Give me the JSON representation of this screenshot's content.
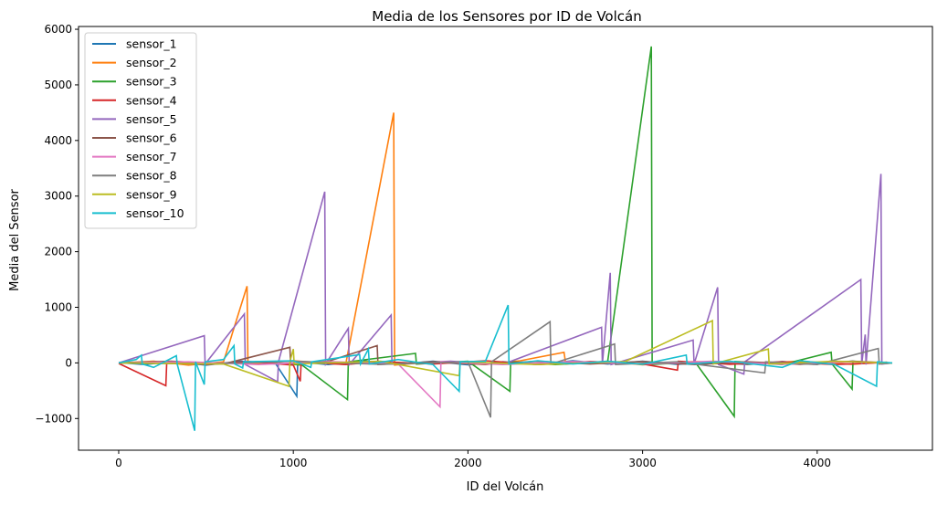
{
  "chart_data": {
    "type": "line",
    "title": "Media de los Sensores por ID de Volcán",
    "xlabel": "ID del Volcán",
    "ylabel": "Media del Sensor",
    "xlim": [
      -230,
      4660
    ],
    "ylim": [
      -1570,
      6050
    ],
    "xticks": [
      0,
      1000,
      2000,
      3000,
      4000
    ],
    "xtick_labels": [
      "0",
      "1000",
      "2000",
      "3000",
      "4000"
    ],
    "yticks": [
      -1000,
      0,
      1000,
      2000,
      3000,
      4000,
      5000,
      6000
    ],
    "ytick_labels": [
      "−1000",
      "0",
      "1000",
      "2000",
      "3000",
      "4000",
      "5000",
      "6000"
    ],
    "grid": false,
    "legend_position": "upper-left",
    "series": [
      {
        "name": "sensor_1",
        "color": "#1f77b4",
        "values": [
          [
            0,
            5
          ],
          [
            150,
            -30
          ],
          [
            300,
            25
          ],
          [
            500,
            -40
          ],
          [
            700,
            30
          ],
          [
            900,
            -20
          ],
          [
            1020,
            -600
          ],
          [
            1025,
            20
          ],
          [
            1200,
            -30
          ],
          [
            1400,
            40
          ],
          [
            1600,
            -25
          ],
          [
            1800,
            30
          ],
          [
            2000,
            -35
          ],
          [
            2200,
            20
          ],
          [
            2400,
            -30
          ],
          [
            2600,
            40
          ],
          [
            2800,
            -20
          ],
          [
            3000,
            30
          ],
          [
            3200,
            -25
          ],
          [
            3400,
            20
          ],
          [
            3600,
            -30
          ],
          [
            3800,
            25
          ],
          [
            4000,
            -20
          ],
          [
            4200,
            30
          ],
          [
            4400,
            -10
          ]
        ]
      },
      {
        "name": "sensor_2",
        "color": "#ff7f0e",
        "values": [
          [
            0,
            0
          ],
          [
            200,
            30
          ],
          [
            400,
            -40
          ],
          [
            600,
            20
          ],
          [
            735,
            1380
          ],
          [
            740,
            -20
          ],
          [
            1000,
            40
          ],
          [
            1300,
            -30
          ],
          [
            1575,
            4500
          ],
          [
            1580,
            -40
          ],
          [
            1800,
            20
          ],
          [
            2100,
            -30
          ],
          [
            2300,
            40
          ],
          [
            2550,
            190
          ],
          [
            2560,
            -20
          ],
          [
            2800,
            30
          ],
          [
            3000,
            -35
          ],
          [
            3300,
            25
          ],
          [
            3600,
            -20
          ],
          [
            3900,
            30
          ],
          [
            4200,
            -25
          ],
          [
            4400,
            15
          ]
        ]
      },
      {
        "name": "sensor_3",
        "color": "#2ca02c",
        "values": [
          [
            0,
            0
          ],
          [
            250,
            20
          ],
          [
            500,
            -30
          ],
          [
            800,
            25
          ],
          [
            1050,
            -40
          ],
          [
            1310,
            -660
          ],
          [
            1315,
            20
          ],
          [
            1700,
            170
          ],
          [
            1705,
            -20
          ],
          [
            2000,
            30
          ],
          [
            2240,
            -510
          ],
          [
            2245,
            20
          ],
          [
            2500,
            -30
          ],
          [
            2800,
            25
          ],
          [
            3050,
            5690
          ],
          [
            3055,
            -30
          ],
          [
            3300,
            20
          ],
          [
            3525,
            -960
          ],
          [
            3530,
            25
          ],
          [
            3800,
            -30
          ],
          [
            4080,
            190
          ],
          [
            4085,
            -20
          ],
          [
            4200,
            -470
          ],
          [
            4205,
            30
          ],
          [
            4400,
            -10
          ]
        ]
      },
      {
        "name": "sensor_4",
        "color": "#d62728",
        "values": [
          [
            0,
            -10
          ],
          [
            270,
            -410
          ],
          [
            275,
            20
          ],
          [
            500,
            -30
          ],
          [
            750,
            25
          ],
          [
            1000,
            -40
          ],
          [
            1040,
            -330
          ],
          [
            1045,
            20
          ],
          [
            1300,
            -30
          ],
          [
            1500,
            25
          ],
          [
            1800,
            -20
          ],
          [
            2100,
            40
          ],
          [
            2400,
            -30
          ],
          [
            2700,
            25
          ],
          [
            3000,
            -20
          ],
          [
            3200,
            -130
          ],
          [
            3205,
            30
          ],
          [
            3500,
            -25
          ],
          [
            3800,
            20
          ],
          [
            4100,
            -30
          ],
          [
            4400,
            10
          ]
        ]
      },
      {
        "name": "sensor_5",
        "color": "#9467bd",
        "values": [
          [
            0,
            0
          ],
          [
            490,
            490
          ],
          [
            495,
            -20
          ],
          [
            720,
            880
          ],
          [
            725,
            -30
          ],
          [
            910,
            -340
          ],
          [
            915,
            20
          ],
          [
            1180,
            3080
          ],
          [
            1185,
            -20
          ],
          [
            1315,
            620
          ],
          [
            1320,
            -30
          ],
          [
            1560,
            860
          ],
          [
            1565,
            -20
          ],
          [
            1900,
            30
          ],
          [
            2200,
            -25
          ],
          [
            2765,
            640
          ],
          [
            2770,
            -20
          ],
          [
            2815,
            1620
          ],
          [
            2820,
            -30
          ],
          [
            3290,
            410
          ],
          [
            3295,
            -20
          ],
          [
            3430,
            1360
          ],
          [
            3435,
            -30
          ],
          [
            3580,
            -200
          ],
          [
            3585,
            20
          ],
          [
            4250,
            1500
          ],
          [
            4255,
            -20
          ],
          [
            4275,
            510
          ],
          [
            4280,
            -30
          ],
          [
            4365,
            3400
          ],
          [
            4370,
            -20
          ],
          [
            4430,
            0
          ]
        ]
      },
      {
        "name": "sensor_6",
        "color": "#8c564b",
        "values": [
          [
            0,
            0
          ],
          [
            300,
            30
          ],
          [
            600,
            -20
          ],
          [
            980,
            280
          ],
          [
            985,
            -20
          ],
          [
            1200,
            30
          ],
          [
            1480,
            310
          ],
          [
            1485,
            -30
          ],
          [
            1800,
            20
          ],
          [
            2100,
            -25
          ],
          [
            2400,
            30
          ],
          [
            2700,
            -20
          ],
          [
            3000,
            25
          ],
          [
            3300,
            -30
          ],
          [
            3600,
            20
          ],
          [
            3900,
            -25
          ],
          [
            4200,
            30
          ],
          [
            4430,
            0
          ]
        ]
      },
      {
        "name": "sensor_7",
        "color": "#e377c2",
        "values": [
          [
            0,
            0
          ],
          [
            400,
            20
          ],
          [
            800,
            -30
          ],
          [
            1200,
            25
          ],
          [
            1600,
            -20
          ],
          [
            1840,
            -790
          ],
          [
            1845,
            20
          ],
          [
            2200,
            -30
          ],
          [
            2600,
            25
          ],
          [
            3000,
            -20
          ],
          [
            3400,
            30
          ],
          [
            3800,
            -25
          ],
          [
            4200,
            20
          ],
          [
            4430,
            0
          ]
        ]
      },
      {
        "name": "sensor_8",
        "color": "#7f7f7f",
        "values": [
          [
            0,
            0
          ],
          [
            500,
            -20
          ],
          [
            1000,
            30
          ],
          [
            1500,
            -25
          ],
          [
            2000,
            20
          ],
          [
            2130,
            -980
          ],
          [
            2135,
            20
          ],
          [
            2470,
            740
          ],
          [
            2475,
            -20
          ],
          [
            2840,
            340
          ],
          [
            2845,
            -30
          ],
          [
            3200,
            20
          ],
          [
            3700,
            -180
          ],
          [
            3705,
            20
          ],
          [
            4000,
            -30
          ],
          [
            4350,
            260
          ],
          [
            4355,
            -20
          ],
          [
            4430,
            0
          ]
        ]
      },
      {
        "name": "sensor_9",
        "color": "#bcbd22",
        "values": [
          [
            0,
            0
          ],
          [
            600,
            -20
          ],
          [
            975,
            -420
          ],
          [
            980,
            20
          ],
          [
            1000,
            250
          ],
          [
            1005,
            -20
          ],
          [
            1500,
            30
          ],
          [
            1950,
            -230
          ],
          [
            1955,
            20
          ],
          [
            2400,
            -30
          ],
          [
            2900,
            25
          ],
          [
            3400,
            760
          ],
          [
            3405,
            -20
          ],
          [
            3720,
            250
          ],
          [
            3725,
            -20
          ],
          [
            4100,
            30
          ],
          [
            4430,
            0
          ]
        ]
      },
      {
        "name": "sensor_10",
        "color": "#17becf",
        "values": [
          [
            0,
            0
          ],
          [
            100,
            60
          ],
          [
            130,
            140
          ],
          [
            135,
            -20
          ],
          [
            200,
            -80
          ],
          [
            330,
            130
          ],
          [
            335,
            -20
          ],
          [
            435,
            -1220
          ],
          [
            440,
            20
          ],
          [
            490,
            -390
          ],
          [
            495,
            20
          ],
          [
            600,
            60
          ],
          [
            660,
            310
          ],
          [
            665,
            -20
          ],
          [
            710,
            -90
          ],
          [
            715,
            20
          ],
          [
            1000,
            40
          ],
          [
            1100,
            -80
          ],
          [
            1105,
            20
          ],
          [
            1380,
            150
          ],
          [
            1385,
            -20
          ],
          [
            1430,
            250
          ],
          [
            1435,
            -20
          ],
          [
            1600,
            60
          ],
          [
            1800,
            -30
          ],
          [
            1950,
            -510
          ],
          [
            1955,
            20
          ],
          [
            2100,
            30
          ],
          [
            2230,
            1040
          ],
          [
            2235,
            -20
          ],
          [
            2400,
            40
          ],
          [
            2600,
            -20
          ],
          [
            2800,
            30
          ],
          [
            3000,
            -25
          ],
          [
            3250,
            140
          ],
          [
            3255,
            -20
          ],
          [
            3500,
            30
          ],
          [
            3800,
            -80
          ],
          [
            3900,
            40
          ],
          [
            4100,
            -30
          ],
          [
            4340,
            -420
          ],
          [
            4345,
            20
          ],
          [
            4430,
            0
          ]
        ]
      }
    ]
  }
}
